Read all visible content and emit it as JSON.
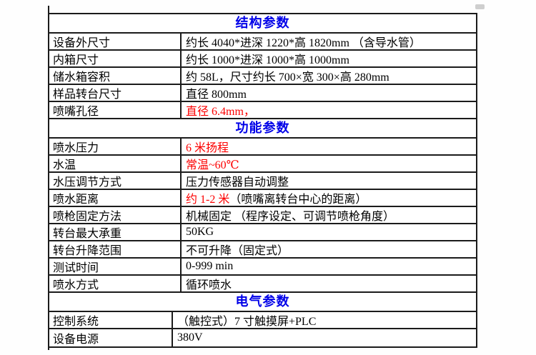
{
  "colors": {
    "section_header_blue": "#0000e8",
    "highlight_red": "#fc0000",
    "border_black": "#1b1b1b",
    "background": "#ffffff"
  },
  "sections": [
    {
      "header": "结构参数",
      "rows": [
        {
          "label": "设备外尺寸",
          "value": "约长 4040*进深 1220*高 1820mm （含导水管）"
        },
        {
          "label": "内箱尺寸",
          "value": "约长 1000*进深 1000*高 1000mm"
        },
        {
          "label": "储水箱容积",
          "value": "约 58L，尺寸约长 700×宽 300×高 280mm"
        },
        {
          "label": "样品转台尺寸",
          "value": "直径 800mm"
        },
        {
          "label": "喷嘴孔径",
          "value": "直径 6.4mm，",
          "value_color": "#fc0000"
        }
      ]
    },
    {
      "header": "功能参数",
      "rows": [
        {
          "label": "喷水压力",
          "value": "6 米扬程",
          "value_color": "#fc0000"
        },
        {
          "label": "水温",
          "value": "常温~60℃",
          "value_color": "#fc0000"
        },
        {
          "label": "水压调节方式",
          "value": "压力传感器自动调整"
        },
        {
          "label": "喷水距离",
          "value": "约 1-2 米",
          "value_color": "#fc0000",
          "value_suffix": " （喷嘴离转台中心的距离）"
        },
        {
          "label": "喷枪固定方法",
          "value": "机械固定 （程序设定、可调节喷枪角度）"
        },
        {
          "label": "转台最大承重",
          "value": "50KG"
        },
        {
          "label": "转台升降范围",
          "value": "不可升降（固定式）"
        },
        {
          "label": "测试时间",
          "value": "0-999 min"
        },
        {
          "label": "喷水方式",
          "value": "循环喷水"
        }
      ]
    },
    {
      "header": "电气参数",
      "rows": [
        {
          "label": "控制系统",
          "value": "（触控式）7 寸触摸屏+PLC"
        },
        {
          "label": "设备电源",
          "value": "380V"
        }
      ]
    }
  ]
}
